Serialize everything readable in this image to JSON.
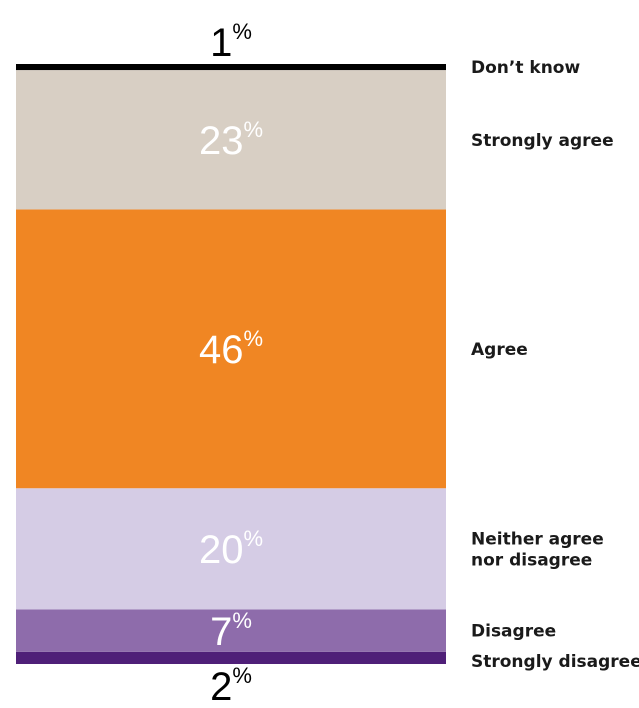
{
  "chart_data": {
    "type": "bar",
    "stacked": true,
    "orientation": "vertical",
    "title": "",
    "xlabel": "",
    "ylabel": "",
    "ylim": [
      0,
      100
    ],
    "grid": false,
    "legend": "right",
    "series": [
      {
        "name": "Strongly disagree",
        "value": 2,
        "label": "2",
        "color": "#4f1f78",
        "label_color": "#000000",
        "label_position": "outside-bottom"
      },
      {
        "name": "Disagree",
        "value": 7,
        "label": "7",
        "color": "#8e6cab",
        "label_color": "#ffffff",
        "label_position": "inside"
      },
      {
        "name": "Neither agree\nnor disagree",
        "value": 20,
        "label": "20",
        "color": "#d5cce5",
        "label_color": "#ffffff",
        "label_position": "inside"
      },
      {
        "name": "Agree",
        "value": 46,
        "label": "46",
        "color": "#f08623",
        "label_color": "#ffffff",
        "label_position": "inside"
      },
      {
        "name": "Strongly agree",
        "value": 23,
        "label": "23",
        "color": "#d8cfc4",
        "label_color": "#ffffff",
        "label_position": "inside"
      },
      {
        "name": "Don’t know",
        "value": 1,
        "label": "1",
        "color": "#000000",
        "label_color": "#000000",
        "label_position": "outside-top"
      }
    ],
    "percent_sign": "%"
  }
}
